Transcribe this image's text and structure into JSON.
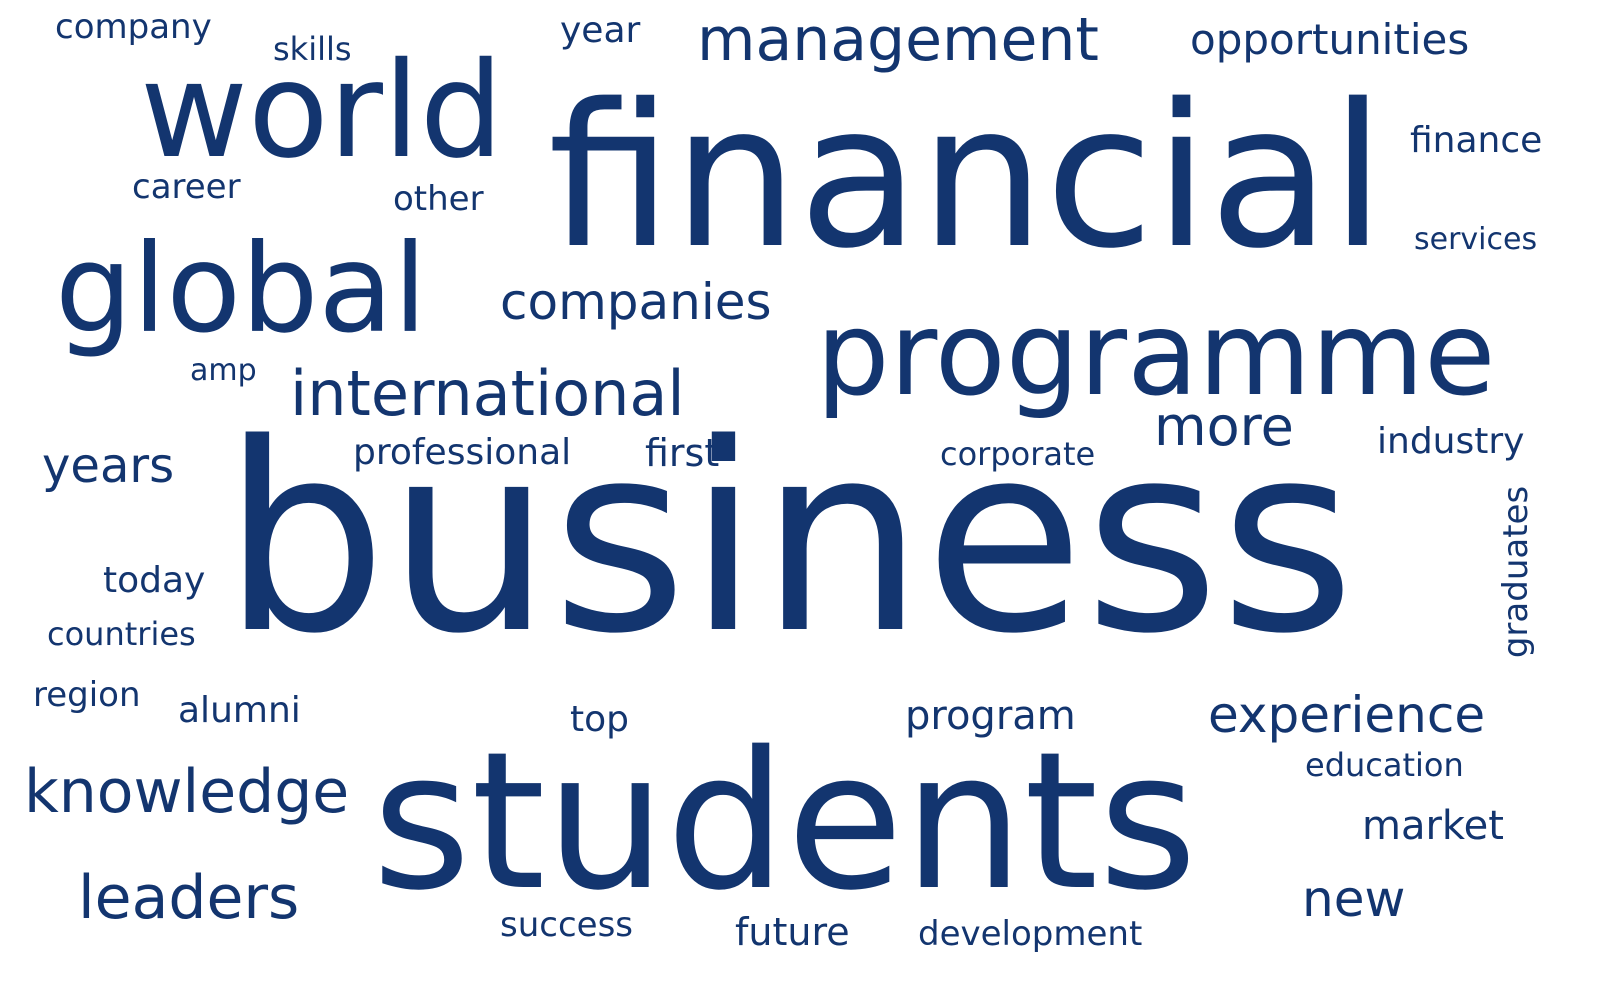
{
  "theme": {
    "text_color": "#13356f",
    "background": "#ffffff"
  },
  "words": {
    "company": "company",
    "skills": "skills",
    "year": "year",
    "management": "management",
    "opportunities": "opportunities",
    "world": "world",
    "financial": "financial",
    "finance": "finance",
    "career": "career",
    "other": "other",
    "services": "services",
    "global": "global",
    "companies": "companies",
    "programme": "programme",
    "amp": "amp",
    "international": "international",
    "more": "more",
    "industry": "industry",
    "years": "years",
    "professional": "professional",
    "first": "first",
    "corporate": "corporate",
    "business": "business",
    "graduates": "graduates",
    "today": "today",
    "countries": "countries",
    "region": "region",
    "alumni": "alumni",
    "top": "top",
    "program": "program",
    "experience": "experience",
    "education": "education",
    "knowledge": "knowledge",
    "students": "students",
    "market": "market",
    "leaders": "leaders",
    "new": "new",
    "success": "success",
    "future": "future",
    "development": "development"
  }
}
